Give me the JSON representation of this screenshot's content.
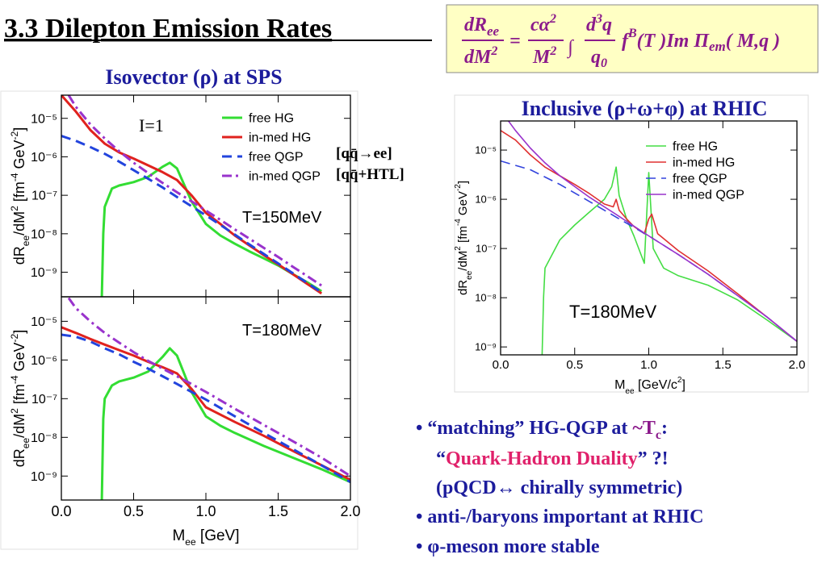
{
  "slide": {
    "title": "3.3 Dilepton Emission Rates",
    "formula": [
      "dR",
      "ee",
      "dM",
      "2",
      "=",
      "cα",
      "2",
      "M",
      "2",
      "∫",
      "d",
      "3",
      "q",
      "q",
      "0",
      "f",
      "B",
      "(T )Im Π",
      "em",
      "( M,q )"
    ],
    "bullets": [
      [
        "• “matching”  HG-QGP at ",
        "~T",
        "c",
        ":"
      ],
      [
        "“",
        "Quark-Hadron Duality",
        "” ?!"
      ],
      [
        "(pQCD↔ chirally symmetric)"
      ],
      [
        "• anti-/baryons important at RHIC"
      ],
      [
        "• φ-meson more stable"
      ]
    ]
  },
  "chart_data": [
    {
      "type": "line",
      "title": "Isovector (ρ) at SPS",
      "ylog": true,
      "xlim": [
        0,
        2
      ],
      "ylim": [
        2.3e-10,
        4e-05
      ],
      "xticks": [
        0,
        0.5,
        1,
        1.5,
        2
      ],
      "show_xtick_labels": false,
      "yticks": [
        {
          "value": 1e-05,
          "label": "10⁻⁵"
        },
        {
          "value": 1e-06,
          "label": "10⁻⁶"
        },
        {
          "value": 1e-07,
          "label": "10⁻⁷"
        },
        {
          "value": 1e-08,
          "label": "10⁻⁸"
        },
        {
          "value": 1e-09,
          "label": "10⁻⁹"
        }
      ],
      "ylabel": [
        "dR",
        "ee",
        "/dM",
        "2",
        " [fm",
        "-4",
        " GeV",
        "-2",
        "]"
      ],
      "annotations": [
        "I=1",
        "T=150MeV",
        "[qq̄→ee]",
        "[qq̄+HTL]"
      ],
      "legend": "upper right",
      "series": [
        {
          "name": "free HG",
          "color": "#33dd33",
          "dash": "solid",
          "x": [
            0.28,
            0.29,
            0.3,
            0.35,
            0.4,
            0.5,
            0.6,
            0.7,
            0.75,
            0.8,
            0.9,
            1.0,
            1.1,
            1.2,
            1.3,
            1.4,
            1.5,
            1.6,
            1.7,
            1.8
          ],
          "values": [
            2.3e-10,
            1e-08,
            5e-08,
            1.5e-07,
            1.8e-07,
            2.2e-07,
            3e-07,
            5.5e-07,
            7e-07,
            5e-07,
            7e-08,
            1.8e-08,
            9e-09,
            5.5e-09,
            3.5e-09,
            2.3e-09,
            1.5e-09,
            9e-10,
            5.5e-10,
            3.2e-10
          ]
        },
        {
          "name": "in-med HG",
          "color": "#e0221e",
          "dash": "solid",
          "x": [
            0,
            0.1,
            0.2,
            0.3,
            0.4,
            0.5,
            0.6,
            0.7,
            0.8,
            0.9,
            1.0,
            1.1,
            1.2,
            1.3,
            1.4,
            1.5,
            1.6,
            1.7,
            1.8
          ],
          "values": [
            4e-05,
            1.5e-05,
            5e-06,
            2.2e-06,
            1.3e-06,
            9e-07,
            6e-07,
            4e-07,
            2.5e-07,
            1e-07,
            3.5e-08,
            1.8e-08,
            9e-09,
            5e-09,
            2.8e-09,
            1.6e-09,
            9e-10,
            5e-10,
            2.8e-10
          ]
        },
        {
          "name": "free QGP",
          "color": "#2244dd",
          "dash": "dashed",
          "x": [
            0,
            0.1,
            0.2,
            0.3,
            0.4,
            0.5,
            0.6,
            0.7,
            0.8,
            0.9,
            1.0,
            1.1,
            1.2,
            1.3,
            1.4,
            1.5,
            1.6,
            1.7,
            1.8
          ],
          "values": [
            3.5e-06,
            2.6e-06,
            1.8e-06,
            1.2e-06,
            7.5e-07,
            4.5e-07,
            2.7e-07,
            1.6e-07,
            9e-08,
            5.2e-08,
            3e-08,
            1.7e-08,
            9.5e-09,
            5.3e-09,
            3e-09,
            1.7e-09,
            9.5e-10,
            5.3e-10,
            3e-10
          ]
        },
        {
          "name": "in-med QGP",
          "color": "#9933cc",
          "dash": "dashdot",
          "x": [
            0.05,
            0.1,
            0.2,
            0.3,
            0.4,
            0.5,
            0.6,
            0.7,
            0.8,
            0.9,
            1.0,
            1.1,
            1.2,
            1.3,
            1.4,
            1.5,
            1.6,
            1.7,
            1.8
          ],
          "values": [
            4e-05,
            2e-05,
            7e-06,
            3e-06,
            1.4e-06,
            7e-07,
            3.8e-07,
            2.1e-07,
            1.2e-07,
            7e-08,
            4e-08,
            2.3e-08,
            1.3e-08,
            7.5e-09,
            4.3e-09,
            2.5e-09,
            1.4e-09,
            8e-10,
            4.5e-10
          ]
        }
      ]
    },
    {
      "type": "line",
      "ylog": true,
      "xlim": [
        0,
        2
      ],
      "ylim": [
        2.4e-10,
        4.3e-05
      ],
      "xticks": [
        {
          "value": 0,
          "label": "0.0"
        },
        {
          "value": 0.5,
          "label": "0.5"
        },
        {
          "value": 1,
          "label": "1.0"
        },
        {
          "value": 1.5,
          "label": "1.5"
        },
        {
          "value": 2,
          "label": "2.0"
        }
      ],
      "yticks": [
        {
          "value": 1e-05,
          "label": "10⁻⁵"
        },
        {
          "value": 1e-06,
          "label": "10⁻⁶"
        },
        {
          "value": 1e-07,
          "label": "10⁻⁷"
        },
        {
          "value": 1e-08,
          "label": "10⁻⁸"
        },
        {
          "value": 1e-09,
          "label": "10⁻⁹"
        }
      ],
      "xlabel": [
        "M",
        "ee",
        " [GeV]"
      ],
      "ylabel": [
        "dR",
        "ee",
        "/dM",
        "2",
        " [fm",
        "-4",
        " GeV",
        "-2",
        "]"
      ],
      "annotations": [
        "T=180MeV"
      ],
      "series": [
        {
          "color": "#33dd33",
          "dash": "solid",
          "x": [
            0.28,
            0.29,
            0.3,
            0.35,
            0.4,
            0.5,
            0.6,
            0.7,
            0.75,
            0.8,
            0.9,
            1.0,
            1.1,
            1.2,
            1.4,
            1.6,
            1.8,
            2.0
          ],
          "values": [
            2.4e-10,
            3e-08,
            1e-07,
            2.2e-07,
            2.8e-07,
            3.5e-07,
            5e-07,
            1.2e-06,
            2e-06,
            1.3e-06,
            1.5e-07,
            3.5e-08,
            2e-08,
            1.3e-08,
            6e-09,
            3e-09,
            1.5e-09,
            7e-10
          ]
        },
        {
          "color": "#e0221e",
          "dash": "solid",
          "x": [
            0,
            0.1,
            0.2,
            0.3,
            0.4,
            0.5,
            0.6,
            0.7,
            0.8,
            0.9,
            1.0,
            1.2,
            1.4,
            1.6,
            1.8,
            2.0
          ],
          "values": [
            7e-06,
            5e-06,
            3.5e-06,
            2.5e-06,
            1.8e-06,
            1.3e-06,
            9e-07,
            6.5e-07,
            4.5e-07,
            1.8e-07,
            6e-08,
            2.5e-08,
            1.1e-08,
            4.5e-09,
            1.9e-09,
            8e-10
          ]
        },
        {
          "color": "#2244dd",
          "dash": "dashed",
          "x": [
            0,
            0.1,
            0.2,
            0.3,
            0.4,
            0.5,
            0.6,
            0.7,
            0.8,
            0.9,
            1.0,
            1.2,
            1.4,
            1.6,
            1.8,
            2.0
          ],
          "values": [
            4.5e-06,
            4e-06,
            3e-06,
            2e-06,
            1.4e-06,
            9e-07,
            6e-07,
            3.8e-07,
            2.4e-07,
            1.5e-07,
            9.5e-08,
            3.5e-08,
            1.3e-08,
            5e-09,
            1.9e-09,
            7e-10
          ]
        },
        {
          "color": "#9933cc",
          "dash": "dashdot",
          "x": [
            0.05,
            0.1,
            0.2,
            0.3,
            0.4,
            0.5,
            0.6,
            0.7,
            0.8,
            0.9,
            1.0,
            1.2,
            1.4,
            1.6,
            1.8,
            2.0
          ],
          "values": [
            4e-05,
            2.2e-05,
            1e-05,
            5e-06,
            2.8e-06,
            1.6e-06,
            9.5e-07,
            6e-07,
            3.8e-07,
            2.4e-07,
            1.5e-07,
            5.5e-08,
            2.1e-08,
            8e-09,
            3e-09,
            1e-09
          ]
        }
      ]
    },
    {
      "type": "line",
      "title": "Inclusive (ρ+ω+φ) at RHIC",
      "ylog": true,
      "xlim": [
        0,
        2
      ],
      "ylim": [
        6.9e-10,
        3.9e-05
      ],
      "xticks": [
        {
          "value": 0,
          "label": "0.0"
        },
        {
          "value": 0.5,
          "label": "0.5"
        },
        {
          "value": 1,
          "label": "1.0"
        },
        {
          "value": 1.5,
          "label": "1.5"
        },
        {
          "value": 2,
          "label": "2.0"
        }
      ],
      "yticks": [
        {
          "value": 1e-05,
          "label": "10⁻⁵"
        },
        {
          "value": 1e-06,
          "label": "10⁻⁶"
        },
        {
          "value": 1e-07,
          "label": "10⁻⁷"
        },
        {
          "value": 1e-08,
          "label": "10⁻⁸"
        },
        {
          "value": 1e-09,
          "label": "10⁻⁹"
        }
      ],
      "xlabel": [
        "M",
        "ee",
        "   [GeV/c",
        "2",
        "]"
      ],
      "ylabel": [
        "dR",
        "ee",
        "/dM",
        "2",
        "  [fm",
        "-4",
        " GeV",
        "-2",
        "]"
      ],
      "annotations": [
        "T=180MeV"
      ],
      "legend": "upper right",
      "series": [
        {
          "name": "free HG",
          "color": "#44dd44",
          "dash": "solid",
          "x": [
            0.28,
            0.29,
            0.3,
            0.4,
            0.5,
            0.6,
            0.7,
            0.75,
            0.78,
            0.8,
            0.85,
            0.9,
            0.97,
            1.0,
            1.03,
            1.1,
            1.2,
            1.4,
            1.6,
            1.8,
            2.0
          ],
          "values": [
            6.9e-10,
            1e-08,
            4e-08,
            1.5e-07,
            3e-07,
            5.5e-07,
            1e-06,
            1.8e-06,
            4.5e-06,
            1.2e-06,
            4e-07,
            1.8e-07,
            5e-08,
            3.5e-06,
            1e-07,
            4e-08,
            2.8e-08,
            1.8e-08,
            9e-09,
            3.5e-09,
            1.3e-09
          ]
        },
        {
          "name": "in-med HG",
          "color": "#e03030",
          "dash": "solid",
          "x": [
            0,
            0.1,
            0.2,
            0.3,
            0.4,
            0.5,
            0.6,
            0.7,
            0.76,
            0.78,
            0.8,
            0.85,
            0.9,
            0.97,
            1.0,
            1.02,
            1.06,
            1.2,
            1.4,
            1.6,
            1.8,
            2.0
          ],
          "values": [
            2.5e-05,
            1.6e-05,
            8e-06,
            4.5e-06,
            3e-06,
            2e-06,
            1.3e-06,
            8e-07,
            7e-07,
            1e-06,
            6e-07,
            4e-07,
            2.8e-07,
            2e-07,
            4e-07,
            5e-07,
            2e-07,
            9e-08,
            3.5e-08,
            1.2e-08,
            4e-09,
            1.3e-09
          ]
        },
        {
          "name": "free QGP",
          "color": "#3344dd",
          "dash": "dashed",
          "x": [
            0,
            0.2,
            0.4,
            0.6,
            0.8,
            1.0,
            1.2,
            1.4,
            1.6,
            1.8,
            2.0
          ],
          "values": [
            6e-06,
            4e-06,
            2e-06,
            9e-07,
            4e-07,
            1.8e-07,
            7.5e-08,
            3e-08,
            1.1e-08,
            4e-09,
            1.3e-09
          ]
        },
        {
          "name": "in-med QGP",
          "color": "#9933cc",
          "dash": "solid",
          "x": [
            0.05,
            0.1,
            0.2,
            0.3,
            0.4,
            0.6,
            0.8,
            1.0,
            1.2,
            1.4,
            1.6,
            1.8,
            2.0
          ],
          "values": [
            4e-05,
            2.5e-05,
            1.1e-05,
            5.5e-06,
            3e-06,
            1.1e-06,
            4.5e-07,
            1.8e-07,
            7.5e-08,
            3e-08,
            1.1e-08,
            4e-09,
            1.3e-09
          ]
        }
      ]
    }
  ]
}
